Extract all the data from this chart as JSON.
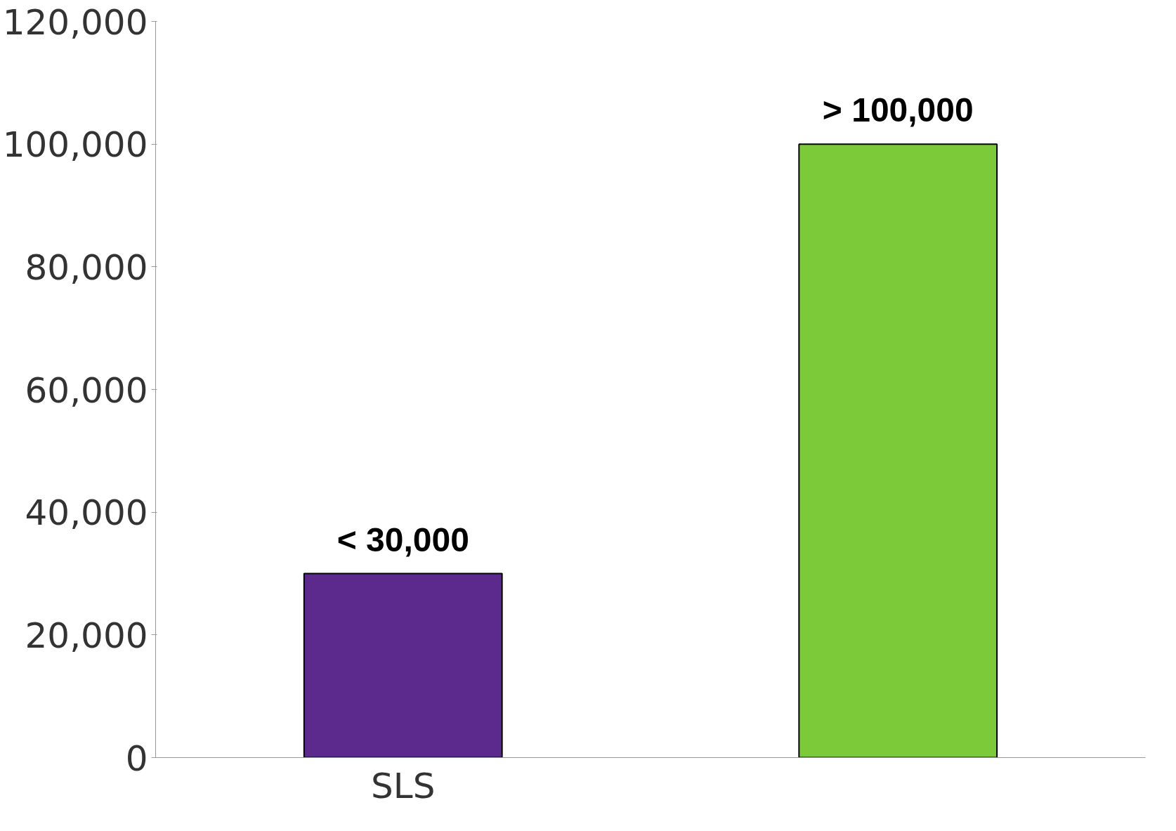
{
  "chart_data": {
    "type": "bar",
    "categories": [
      "SLS",
      null
    ],
    "values": [
      30000,
      100000
    ],
    "colors": [
      "#5b2a8c",
      "#7cc93a"
    ],
    "value_labels": [
      "< 30,000",
      "> 100,000"
    ],
    "ylim": [
      0,
      120000
    ],
    "yticks": [
      {
        "value": 0,
        "label": "0"
      },
      {
        "value": 20000,
        "label": "20,000"
      },
      {
        "value": 40000,
        "label": "40,000"
      },
      {
        "value": 60000,
        "label": "60,000"
      },
      {
        "value": 80000,
        "label": "80,000"
      },
      {
        "value": 100000,
        "label": "100,000"
      },
      {
        "value": 120000,
        "label": "120,000"
      }
    ],
    "grid": false
  }
}
